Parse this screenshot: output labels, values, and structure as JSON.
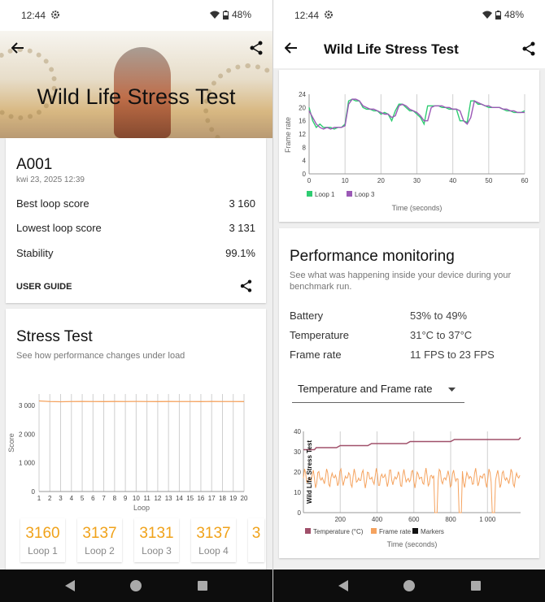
{
  "status": {
    "time": "12:44",
    "battery": "48%"
  },
  "left": {
    "hero_title": "Wild Life Stress Test",
    "device": {
      "name": "A001",
      "date": "kwi 23, 2025 12:39"
    },
    "results": [
      {
        "label": "Best loop score",
        "value": "3 160"
      },
      {
        "label": "Lowest loop score",
        "value": "3 131"
      },
      {
        "label": "Stability",
        "value": "99.1%"
      }
    ],
    "user_guide": "USER GUIDE",
    "stress": {
      "title": "Stress Test",
      "subtitle": "See how performance changes under load"
    },
    "tiles": [
      {
        "score": "3160",
        "label": "Loop 1"
      },
      {
        "score": "3137",
        "label": "Loop 2"
      },
      {
        "score": "3131",
        "label": "Loop 3"
      },
      {
        "score": "3137",
        "label": "Loop 4"
      },
      {
        "score": "3",
        "label": ""
      }
    ]
  },
  "right": {
    "title": "Wild Life Stress Test",
    "pm": {
      "title": "Performance monitoring",
      "subtitle": "See what was happening inside your device during your benchmark run.",
      "rows": [
        {
          "label": "Battery",
          "value": "53% to 49%"
        },
        {
          "label": "Temperature",
          "value": "31°C to 37°C"
        },
        {
          "label": "Frame rate",
          "value": "11 FPS to 23 FPS"
        }
      ],
      "dropdown": "Temperature and Frame rate"
    }
  },
  "chart_data": [
    {
      "type": "line",
      "id": "stress-score",
      "x": [
        1,
        2,
        3,
        4,
        5,
        6,
        7,
        8,
        9,
        10,
        11,
        12,
        13,
        14,
        15,
        16,
        17,
        18,
        19,
        20
      ],
      "series": [
        {
          "values": [
            3160,
            3137,
            3131,
            3137,
            3140,
            3138,
            3136,
            3139,
            3137,
            3141,
            3138,
            3136,
            3139,
            3137,
            3138,
            3136,
            3140,
            3137,
            3138,
            3136
          ]
        }
      ],
      "xlabel": "Loop",
      "ylabel": "Score",
      "ylim": [
        0,
        3400
      ],
      "xticks": [
        "1",
        "2",
        "3",
        "4",
        "5",
        "6",
        "7",
        "8",
        "9",
        "10",
        "11",
        "12",
        "13",
        "14",
        "15",
        "16",
        "17",
        "18",
        "19",
        "20"
      ],
      "yticks": [
        "0",
        "1 000",
        "2 000",
        "3 000"
      ],
      "color": "#f5a35f"
    },
    {
      "type": "line",
      "id": "frame-rate-loops",
      "x": [
        0,
        1,
        2,
        3,
        4,
        5,
        6,
        7,
        8,
        9,
        10,
        11,
        12,
        13,
        14,
        15,
        16,
        17,
        18,
        19,
        20,
        21,
        22,
        23,
        24,
        25,
        26,
        27,
        28,
        29,
        30,
        31,
        32,
        33,
        34,
        35,
        36,
        37,
        38,
        39,
        40,
        41,
        42,
        43,
        44,
        45,
        46,
        47,
        48,
        49,
        50,
        51,
        52,
        53,
        54,
        55,
        56,
        57,
        58,
        59,
        60
      ],
      "series": [
        {
          "name": "Loop 1",
          "color": "#2ecc71",
          "values": [
            20,
            16,
            14,
            15,
            14,
            14,
            14,
            13.5,
            14,
            14,
            15,
            22,
            22.5,
            22,
            22,
            20,
            19.5,
            19.5,
            19,
            19,
            18,
            18.5,
            18,
            16,
            19,
            21,
            21,
            20,
            19,
            19,
            18,
            17,
            15,
            20.5,
            20.5,
            20.5,
            20.5,
            20,
            20,
            19.5,
            19.5,
            19.5,
            16,
            16,
            15.5,
            22,
            22,
            21,
            21,
            20.5,
            20,
            20,
            20,
            20,
            19.5,
            19,
            19,
            18.5,
            18.5,
            18.5,
            19
          ]
        },
        {
          "name": "Loop 3",
          "color": "#9b59b6",
          "values": [
            19,
            17,
            15,
            14,
            13.5,
            14,
            13.5,
            14,
            14,
            14,
            14.5,
            21,
            22.5,
            22.5,
            22,
            20.5,
            20,
            19.5,
            19.5,
            19,
            18.5,
            18,
            18,
            17,
            17.5,
            20.5,
            21,
            20.5,
            19.5,
            19,
            18.5,
            17.5,
            16,
            16,
            20,
            20.5,
            20.5,
            20.5,
            20,
            20,
            19.5,
            19.5,
            19,
            16,
            15,
            17,
            22,
            21.5,
            21,
            20.5,
            20.5,
            20,
            20,
            20,
            19.5,
            19.5,
            19,
            19,
            18.5,
            18.5,
            18.5
          ]
        }
      ],
      "xlabel": "Time (seconds)",
      "ylabel": "Frame rate",
      "xticks": [
        "0",
        "10",
        "20",
        "30",
        "40",
        "50",
        "60"
      ],
      "yticks": [
        "0",
        "4",
        "8",
        "12",
        "16",
        "20",
        "24"
      ],
      "xlim": [
        0,
        60
      ],
      "ylim": [
        0,
        24
      ]
    },
    {
      "type": "line",
      "id": "temperature-framerate",
      "title": "Wild Life Stress Test",
      "x_range": [
        0,
        1180
      ],
      "series": [
        {
          "name": "Temperature (°C)",
          "color": "#a0506a",
          "x": [
            0,
            60,
            70,
            180,
            200,
            350,
            370,
            560,
            580,
            800,
            820,
            1170,
            1180
          ],
          "values": [
            31,
            31,
            32,
            32,
            33,
            33,
            34,
            34,
            35,
            35,
            36,
            36,
            37
          ]
        },
        {
          "name": "Frame rate",
          "color": "#f5a35f",
          "summary": "oscillates between 12 and 22 FPS with drops to 0 at roughly 720, 850 and 1030 s"
        },
        {
          "name": "Markers",
          "color": "#111111"
        }
      ],
      "xlabel": "Time (seconds)",
      "xticks": [
        "200",
        "400",
        "600",
        "800",
        "1 000"
      ],
      "yticks": [
        "0",
        "10",
        "20",
        "30",
        "40"
      ],
      "ylim": [
        0,
        40
      ]
    }
  ]
}
